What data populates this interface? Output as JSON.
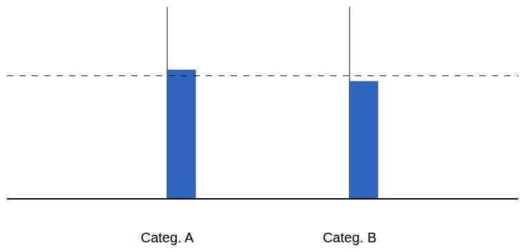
{
  "chart_data": {
    "type": "bar",
    "categories": [
      "Categ. A",
      "Categ. B"
    ],
    "values": [
      67,
      61
    ],
    "color": "#3166be",
    "ylim": [
      0,
      100
    ],
    "threshold": 64,
    "grid": false,
    "tick_labels": "x"
  }
}
